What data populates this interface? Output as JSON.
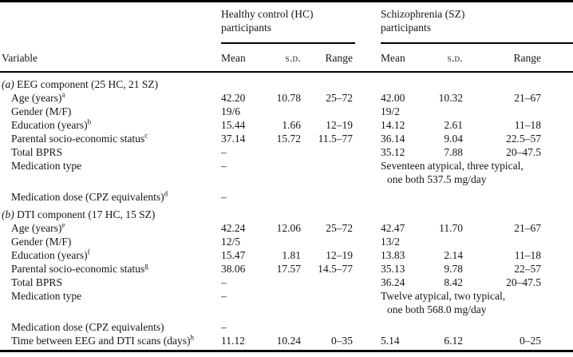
{
  "colors": {
    "background": "#ffffff",
    "text": "#161616",
    "rule": "#000000"
  },
  "table": {
    "groups": {
      "hc": {
        "line1": "Healthy control (HC)",
        "line2": "participants"
      },
      "sz": {
        "line1": "Schizophrenia (SZ)",
        "line2": "participants"
      }
    },
    "col_headers": {
      "variable": "Variable",
      "hc": [
        "Mean",
        "s.d.",
        "Range"
      ],
      "sz": [
        "Mean",
        "s.d.",
        "Range"
      ]
    },
    "rows": [
      {
        "marker": "(a)",
        "label": " EEG component (25 HC, 21 SZ)"
      },
      {
        "label": "Age (years)",
        "sup": "a",
        "hc": [
          "42.20",
          "10.78",
          "25–72"
        ],
        "sz": [
          "42.00",
          "10.32",
          "21–67"
        ]
      },
      {
        "label": "Gender (M/F)",
        "hc": [
          "19/6",
          "",
          ""
        ],
        "sz": [
          "19/2",
          "",
          ""
        ]
      },
      {
        "label": "Education (years)",
        "sup": "b",
        "hc": [
          "15.44",
          "1.66",
          "12–19"
        ],
        "sz": [
          "14.12",
          "2.61",
          "11–18"
        ]
      },
      {
        "label": "Parental socio-economic status",
        "sup": "c",
        "hc": [
          "37.14",
          "15.72",
          "11.5–77"
        ],
        "sz": [
          "36.14",
          "9.04",
          "22.5–57"
        ]
      },
      {
        "label": "Total BPRS",
        "hc": [
          "–",
          "",
          ""
        ],
        "sz": [
          "35.12",
          "7.88",
          "20–47.5"
        ]
      },
      {
        "label": "Medication type",
        "hc": [
          "–",
          "",
          ""
        ],
        "sz_text": {
          "line1": "Seventeen atypical, three typical,",
          "line2": "one both 537.5 mg/day"
        }
      },
      {
        "label": "Medication dose (CPZ equivalents)",
        "sup": "d",
        "hc": [
          "–",
          "",
          ""
        ],
        "sz": [
          "",
          "",
          ""
        ]
      },
      {
        "marker": "(b)",
        "label": " DTI component (17 HC, 15 SZ)"
      },
      {
        "label": "Age (years)",
        "sup": "e",
        "hc": [
          "42.24",
          "12.06",
          "25–72"
        ],
        "sz": [
          "42.47",
          "11.70",
          "21–67"
        ]
      },
      {
        "label": "Gender (M/F)",
        "hc": [
          "12/5",
          "",
          ""
        ],
        "sz": [
          "13/2",
          "",
          ""
        ]
      },
      {
        "label": "Education (years)",
        "sup": "f",
        "hc": [
          "15.47",
          "1.81",
          "12–19"
        ],
        "sz": [
          "13.83",
          "2.14",
          "11–18"
        ]
      },
      {
        "label": "Parental socio-economic status",
        "sup": "g",
        "hc": [
          "38.06",
          "17.57",
          "14.5–77"
        ],
        "sz": [
          "35.13",
          "9.78",
          "22–57"
        ]
      },
      {
        "label": "Total BPRS",
        "hc": [
          "–",
          "",
          ""
        ],
        "sz": [
          "36.24",
          "8.42",
          "20–47.5"
        ]
      },
      {
        "label": "Medication type",
        "hc": [
          "–",
          "",
          ""
        ],
        "sz_text": {
          "line1": "Twelve atypical, two typical,",
          "line2": "one both 568.0 mg/day"
        }
      },
      {
        "label": "Medication dose (CPZ equivalents)",
        "hc": [
          "–",
          "",
          ""
        ],
        "sz": [
          "",
          "",
          ""
        ]
      },
      {
        "label": "Time between EEG and DTI scans (days)",
        "sup": "h",
        "hc": [
          "11.12",
          "10.24",
          "0–35"
        ],
        "sz": [
          "5.14",
          "6.12",
          "0–25"
        ]
      }
    ]
  }
}
